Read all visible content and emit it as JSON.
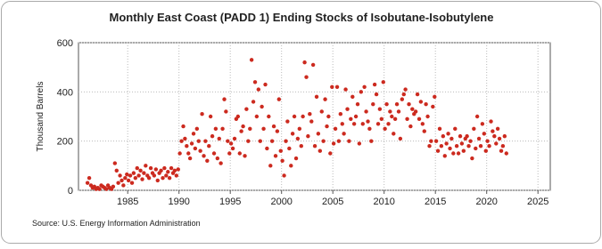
{
  "chart_data": {
    "type": "scatter",
    "title": "Monthly East Coast (PADD 1) Ending Stocks of Isobutane-Isobutylene",
    "y_label": "Thousand Barrels",
    "source": "Source: U.S. Energy Information Administration",
    "color": "#cc2a1f",
    "grid": true,
    "xlim": [
      1980.2,
      2026.2
    ],
    "ylim": [
      0,
      600
    ],
    "xticks": [
      1985,
      1990,
      1995,
      2000,
      2005,
      2010,
      2015,
      2020,
      2025
    ],
    "yticks": [
      0,
      200,
      400,
      600
    ],
    "x": [
      1981.08,
      1981.25,
      1981.42,
      1981.58,
      1981.75,
      1981.92,
      1982.08,
      1982.25,
      1982.42,
      1982.58,
      1982.75,
      1982.92,
      1983.08,
      1983.25,
      1983.42,
      1983.58,
      1983.75,
      1983.92,
      1984.08,
      1984.25,
      1984.42,
      1984.58,
      1984.75,
      1984.92,
      1985.08,
      1985.25,
      1985.42,
      1985.58,
      1985.75,
      1985.92,
      1986.08,
      1986.25,
      1986.42,
      1986.58,
      1986.75,
      1986.92,
      1987.08,
      1987.25,
      1987.42,
      1987.58,
      1987.75,
      1987.92,
      1988.08,
      1988.25,
      1988.42,
      1988.58,
      1988.75,
      1988.92,
      1989.08,
      1989.25,
      1989.42,
      1989.58,
      1989.75,
      1989.92,
      1990.08,
      1990.25,
      1990.42,
      1990.58,
      1990.75,
      1990.92,
      1991.08,
      1991.25,
      1991.42,
      1991.58,
      1991.75,
      1991.92,
      1992.08,
      1992.25,
      1992.42,
      1992.58,
      1992.75,
      1992.92,
      1993.08,
      1993.25,
      1993.42,
      1993.58,
      1993.75,
      1993.92,
      1994.08,
      1994.25,
      1994.42,
      1994.58,
      1994.75,
      1994.92,
      1995.08,
      1995.25,
      1995.42,
      1995.58,
      1995.75,
      1995.92,
      1996.08,
      1996.25,
      1996.42,
      1996.58,
      1996.75,
      1996.92,
      1997.08,
      1997.25,
      1997.42,
      1997.58,
      1997.75,
      1997.92,
      1998.08,
      1998.25,
      1998.42,
      1998.58,
      1998.75,
      1998.92,
      1999.08,
      1999.25,
      1999.42,
      1999.58,
      1999.75,
      1999.92,
      2000.08,
      2000.25,
      2000.42,
      2000.58,
      2000.75,
      2000.92,
      2001.08,
      2001.25,
      2001.42,
      2001.58,
      2001.75,
      2001.92,
      2002.08,
      2002.25,
      2002.42,
      2002.58,
      2002.75,
      2002.92,
      2003.08,
      2003.25,
      2003.42,
      2003.58,
      2003.75,
      2003.92,
      2004.08,
      2004.25,
      2004.42,
      2004.58,
      2004.75,
      2004.92,
      2005.08,
      2005.25,
      2005.42,
      2005.58,
      2005.75,
      2005.92,
      2006.08,
      2006.25,
      2006.42,
      2006.58,
      2006.75,
      2006.92,
      2007.08,
      2007.25,
      2007.42,
      2007.58,
      2007.75,
      2007.92,
      2008.08,
      2008.25,
      2008.42,
      2008.58,
      2008.75,
      2008.92,
      2009.08,
      2009.25,
      2009.42,
      2009.58,
      2009.75,
      2009.92,
      2010.08,
      2010.25,
      2010.42,
      2010.58,
      2010.75,
      2010.92,
      2011.08,
      2011.25,
      2011.42,
      2011.58,
      2011.75,
      2011.92,
      2012.08,
      2012.25,
      2012.42,
      2012.58,
      2012.75,
      2012.92,
      2013.08,
      2013.25,
      2013.42,
      2013.58,
      2013.75,
      2013.92,
      2014.08,
      2014.25,
      2014.42,
      2014.58,
      2014.75,
      2014.92,
      2015.08,
      2015.25,
      2015.42,
      2015.58,
      2015.75,
      2015.92,
      2016.08,
      2016.25,
      2016.42,
      2016.58,
      2016.75,
      2016.92,
      2017.08,
      2017.25,
      2017.42,
      2017.58,
      2017.75,
      2017.92,
      2018.08,
      2018.25,
      2018.42,
      2018.58,
      2018.75,
      2018.92,
      2019.08,
      2019.25,
      2019.42,
      2019.58,
      2019.75,
      2019.92,
      2020.08,
      2020.25,
      2020.42,
      2020.58,
      2020.75,
      2020.92,
      2021.08,
      2021.25,
      2021.42,
      2021.58,
      2021.75,
      2021.92
    ],
    "values": [
      30,
      50,
      20,
      10,
      15,
      5,
      10,
      5,
      20,
      15,
      10,
      5,
      20,
      10,
      5,
      15,
      110,
      80,
      30,
      60,
      40,
      20,
      50,
      65,
      40,
      60,
      30,
      70,
      50,
      90,
      60,
      80,
      45,
      70,
      100,
      60,
      50,
      90,
      70,
      60,
      85,
      40,
      70,
      80,
      50,
      90,
      60,
      75,
      50,
      90,
      70,
      80,
      60,
      85,
      150,
      200,
      260,
      210,
      180,
      150,
      130,
      190,
      230,
      170,
      250,
      200,
      160,
      310,
      140,
      200,
      120,
      180,
      300,
      220,
      150,
      250,
      130,
      210,
      110,
      250,
      370,
      320,
      200,
      150,
      190,
      170,
      210,
      290,
      300,
      150,
      240,
      260,
      140,
      330,
      200,
      250,
      530,
      360,
      440,
      300,
      410,
      200,
      340,
      250,
      430,
      170,
      300,
      100,
      200,
      260,
      140,
      240,
      370,
      160,
      120,
      60,
      200,
      280,
      170,
      100,
      230,
      300,
      130,
      210,
      250,
      180,
      300,
      520,
      460,
      220,
      310,
      280,
      510,
      180,
      380,
      230,
      160,
      320,
      200,
      370,
      260,
      300,
      150,
      420,
      190,
      250,
      420,
      200,
      310,
      270,
      230,
      410,
      330,
      200,
      290,
      380,
      270,
      300,
      350,
      190,
      400,
      270,
      420,
      320,
      280,
      250,
      200,
      350,
      430,
      390,
      270,
      330,
      290,
      440,
      250,
      350,
      270,
      320,
      300,
      230,
      290,
      350,
      320,
      210,
      370,
      390,
      410,
      290,
      350,
      260,
      330,
      310,
      320,
      390,
      290,
      360,
      270,
      240,
      350,
      300,
      180,
      200,
      340,
      380,
      200,
      160,
      250,
      180,
      220,
      140,
      190,
      230,
      170,
      210,
      150,
      250,
      180,
      150,
      220,
      190,
      160,
      210,
      220,
      180,
      200,
      130,
      250,
      170,
      300,
      210,
      180,
      270,
      230,
      160,
      200,
      180,
      280,
      240,
      220,
      190,
      250,
      210,
      160,
      180,
      220,
      150
    ]
  }
}
